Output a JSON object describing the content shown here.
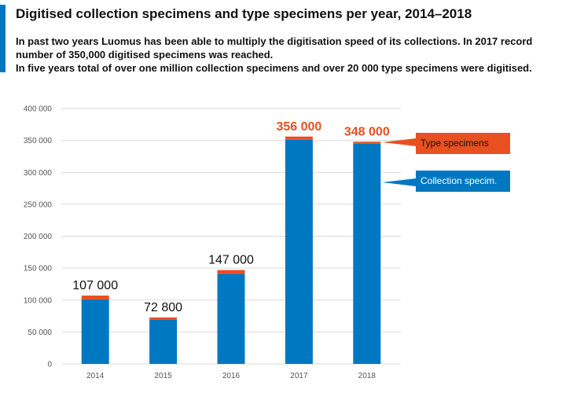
{
  "header": {
    "title": "Digitised collection specimens and type specimens per year, 2014–2018",
    "subtitle_lines": [
      "In past two years Luomus has been able to multiply the digitisation speed of its collections. In 2017 record",
      "number of 350,000 digitised specimens was reached.",
      "In five years total of over one million collection specimens and over 20 000 type specimens were digitised."
    ]
  },
  "colors": {
    "collection": "#0078c1",
    "type": "#e8501f",
    "accent": "#0078c1",
    "highlight_label": "#e8501f",
    "normal_label": "#111111",
    "grid": "#d9d9d9"
  },
  "chart_data": {
    "type": "bar",
    "stacked": true,
    "categories": [
      "2014",
      "2015",
      "2016",
      "2017",
      "2018"
    ],
    "series": [
      {
        "name": "Collection specim.",
        "values": [
          101000,
          69000,
          141000,
          351000,
          345000
        ]
      },
      {
        "name": "Type specimens",
        "values": [
          6000,
          3800,
          6000,
          5000,
          3000
        ]
      }
    ],
    "totals_labels": [
      "107 000",
      "72 800",
      "147 000",
      "356 000",
      "348 000"
    ],
    "highlighted_totals": [
      false,
      false,
      false,
      true,
      true
    ],
    "ylim": [
      0,
      400000
    ],
    "yticks": [
      0,
      50000,
      100000,
      150000,
      200000,
      250000,
      300000,
      350000,
      400000
    ],
    "ytick_labels": [
      "0",
      "50 000",
      "100 000",
      "150 000",
      "200 000",
      "250 000",
      "300 000",
      "350 000",
      "400 000"
    ],
    "grid": true,
    "legend_placement": "right (callout boxes)"
  }
}
